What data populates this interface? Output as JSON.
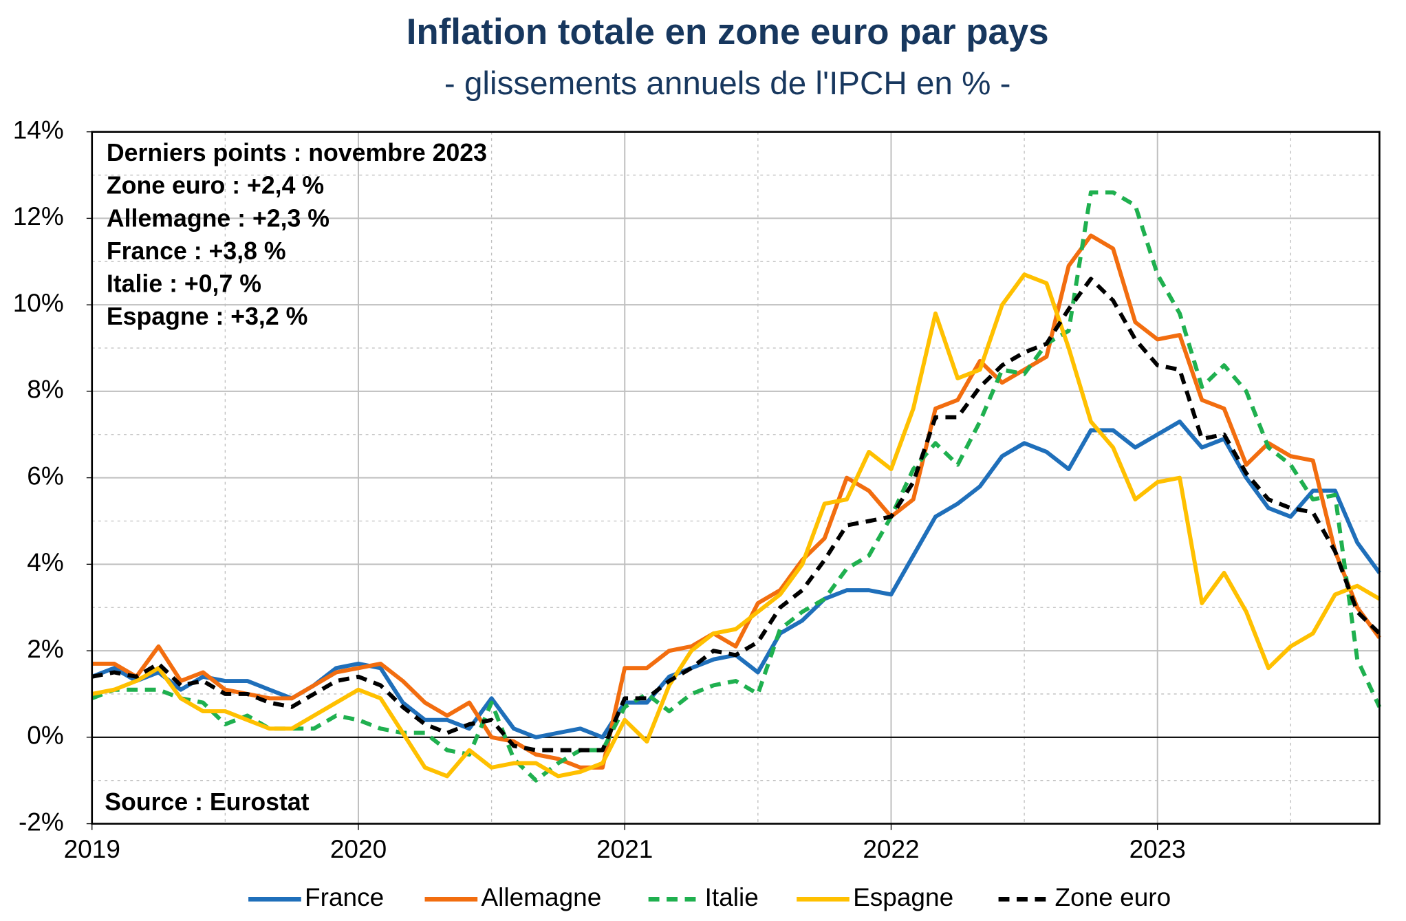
{
  "chart_data": {
    "type": "line",
    "title": "Inflation totale en zone euro par pays",
    "subtitle": "- glissements annuels de l'IPCH en % -",
    "annotations": [
      "Derniers points : novembre 2023",
      "Zone euro : +2,4 %",
      "Allemagne : +2,3 %",
      "France : +3,8 %",
      "Italie : +0,7 %",
      "Espagne : +3,2 %"
    ],
    "source": "Source : Eurostat",
    "categories": [
      "2019",
      null,
      null,
      null,
      null,
      null,
      null,
      null,
      null,
      null,
      null,
      null,
      "2020",
      null,
      null,
      null,
      null,
      null,
      null,
      null,
      null,
      null,
      null,
      null,
      "2021",
      null,
      null,
      null,
      null,
      null,
      null,
      null,
      null,
      null,
      null,
      null,
      "2022",
      null,
      null,
      null,
      null,
      null,
      null,
      null,
      null,
      null,
      null,
      null,
      "2023",
      null,
      null,
      null,
      null,
      null,
      null,
      null,
      null,
      null,
      null
    ],
    "ylim": [
      -2,
      14
    ],
    "yticks": [
      {
        "value": -2,
        "label": "-2%"
      },
      {
        "value": 0,
        "label": "0%"
      },
      {
        "value": 2,
        "label": "2%"
      },
      {
        "value": 4,
        "label": "4%"
      },
      {
        "value": 6,
        "label": "6%"
      },
      {
        "value": 8,
        "label": "8%"
      },
      {
        "value": 10,
        "label": "10%"
      },
      {
        "value": 12,
        "label": "12%"
      },
      {
        "value": 14,
        "label": "14%"
      }
    ],
    "grid": true,
    "legend": "bottom",
    "series": [
      {
        "name": "France",
        "color": "#1f6fba",
        "style": "solid",
        "values": [
          1.4,
          1.6,
          1.3,
          1.5,
          1.1,
          1.4,
          1.3,
          1.3,
          1.1,
          0.9,
          1.2,
          1.6,
          1.7,
          1.6,
          0.8,
          0.4,
          0.4,
          0.2,
          0.9,
          0.2,
          0.0,
          0.1,
          0.2,
          0.0,
          0.8,
          0.8,
          1.4,
          1.6,
          1.8,
          1.9,
          1.5,
          2.4,
          2.7,
          3.2,
          3.4,
          3.4,
          3.3,
          4.2,
          5.1,
          5.4,
          5.8,
          6.5,
          6.8,
          6.6,
          6.2,
          7.1,
          7.1,
          6.7,
          7.0,
          7.3,
          6.7,
          6.9,
          6.0,
          5.3,
          5.1,
          5.7,
          5.7,
          4.5,
          3.8
        ]
      },
      {
        "name": "Allemagne",
        "color": "#f26d0f",
        "style": "solid",
        "values": [
          1.7,
          1.7,
          1.4,
          2.1,
          1.3,
          1.5,
          1.1,
          1.0,
          0.9,
          0.9,
          1.2,
          1.5,
          1.6,
          1.7,
          1.3,
          0.8,
          0.5,
          0.8,
          0.0,
          -0.1,
          -0.4,
          -0.5,
          -0.7,
          -0.7,
          1.6,
          1.6,
          2.0,
          2.1,
          2.4,
          2.1,
          3.1,
          3.4,
          4.1,
          4.6,
          6.0,
          5.7,
          5.1,
          5.5,
          7.6,
          7.8,
          8.7,
          8.2,
          8.5,
          8.8,
          10.9,
          11.6,
          11.3,
          9.6,
          9.2,
          9.3,
          7.8,
          7.6,
          6.3,
          6.8,
          6.5,
          6.4,
          4.3,
          3.0,
          2.3
        ]
      },
      {
        "name": "Italie",
        "color": "#1fb04f",
        "style": "dashed",
        "values": [
          0.9,
          1.1,
          1.1,
          1.1,
          0.9,
          0.8,
          0.3,
          0.5,
          0.2,
          0.2,
          0.2,
          0.5,
          0.4,
          0.2,
          0.1,
          0.1,
          -0.3,
          -0.4,
          0.8,
          -0.5,
          -1.0,
          -0.6,
          -0.3,
          -0.3,
          0.7,
          1.0,
          0.6,
          1.0,
          1.2,
          1.3,
          1.0,
          2.5,
          2.9,
          3.2,
          3.9,
          4.2,
          5.1,
          6.2,
          6.8,
          6.3,
          7.3,
          8.5,
          8.4,
          9.1,
          9.4,
          12.6,
          12.6,
          12.3,
          10.7,
          9.8,
          8.1,
          8.6,
          8.0,
          6.7,
          6.3,
          5.5,
          5.6,
          1.8,
          0.7
        ]
      },
      {
        "name": "Espagne",
        "color": "#ffc000",
        "style": "solid",
        "values": [
          1.0,
          1.1,
          1.3,
          1.6,
          0.9,
          0.6,
          0.6,
          0.4,
          0.2,
          0.2,
          0.5,
          0.8,
          1.1,
          0.9,
          0.1,
          -0.7,
          -0.9,
          -0.3,
          -0.7,
          -0.6,
          -0.6,
          -0.9,
          -0.8,
          -0.6,
          0.4,
          -0.1,
          1.2,
          2.0,
          2.4,
          2.5,
          2.9,
          3.3,
          4.0,
          5.4,
          5.5,
          6.6,
          6.2,
          7.6,
          9.8,
          8.3,
          8.5,
          10.0,
          10.7,
          10.5,
          9.0,
          7.3,
          6.7,
          5.5,
          5.9,
          6.0,
          3.1,
          3.8,
          2.9,
          1.6,
          2.1,
          2.4,
          3.3,
          3.5,
          3.2
        ]
      },
      {
        "name": "Zone euro",
        "color": "#000000",
        "style": "dashed",
        "values": [
          1.4,
          1.5,
          1.4,
          1.7,
          1.2,
          1.3,
          1.0,
          1.0,
          0.8,
          0.7,
          1.0,
          1.3,
          1.4,
          1.2,
          0.7,
          0.3,
          0.1,
          0.3,
          0.4,
          -0.2,
          -0.3,
          -0.3,
          -0.3,
          -0.3,
          0.9,
          0.9,
          1.3,
          1.6,
          2.0,
          1.9,
          2.2,
          3.0,
          3.4,
          4.1,
          4.9,
          5.0,
          5.1,
          5.9,
          7.4,
          7.4,
          8.1,
          8.6,
          8.9,
          9.1,
          9.9,
          10.6,
          10.1,
          9.2,
          8.6,
          8.5,
          6.9,
          7.0,
          6.1,
          5.5,
          5.3,
          5.2,
          4.3,
          2.9,
          2.4
        ]
      }
    ]
  }
}
